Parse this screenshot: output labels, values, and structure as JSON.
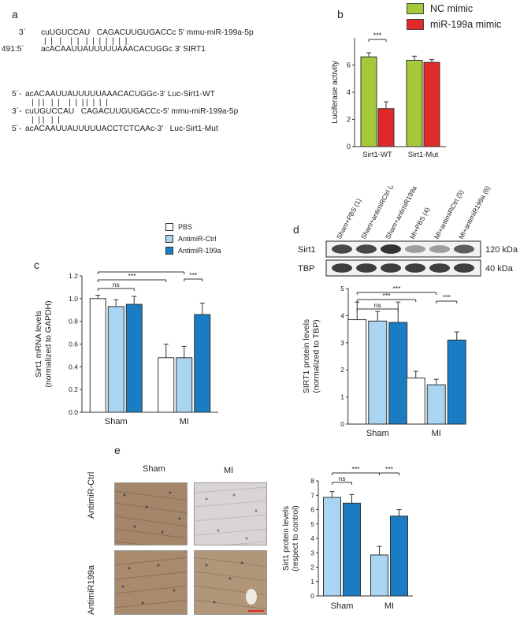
{
  "panel_labels": [
    "a",
    "b",
    "c",
    "d",
    "e"
  ],
  "panel_a": {
    "block1": [
      {
        "prefix": "3`",
        "seq": "cuUGUCCAU   CAGACUUGUGACCc 5' mmu-miR-199a-5p"
      },
      {
        "prefix": "",
        "seq": "|  |   |    |  |   |  |  |  |  |  |  |"
      },
      {
        "prefix": "491:5´",
        "seq": "acACAAUUAUUUUUAAACACUGGc 3' SIRT1"
      }
    ],
    "block2": [
      {
        "prefix": "5´-",
        "seq": "acACAAUUAUUUUUAAACACUGGc-3' Luc-Sirt1-WT"
      },
      {
        "prefix": "",
        "seq": "|  | |   |  |    |  |  | |  |  |  |"
      },
      {
        "prefix": "3`-",
        "seq": "cuUGUCCAU   CAGACUUGUGACCc-5' mmu-miR-199a-5p"
      },
      {
        "prefix": "",
        "seq": "|  | |   |  |"
      },
      {
        "prefix": "5´-",
        "seq": "acACAAUUAUUUUUACCTCTCAAc-3'   Luc-Sirt1-Mut"
      }
    ]
  },
  "panel_c_legend": [
    "PBS",
    "AntimiR-Ctrl",
    "AntimiR-199a"
  ],
  "panel_d_lanes": [
    "Sham+PBS (1)",
    "Sham+antimiRCtrl (2)",
    "Sham+antimiR199a (3)",
    "MI+PBS (4)",
    "MI+antimiRCtrl (5)",
    "MI+antimiR199a (6)"
  ],
  "panel_d_blots": [
    {
      "name": "Sirt1",
      "kda": "120 kDa",
      "intensity": [
        0.85,
        0.85,
        0.95,
        0.45,
        0.45,
        0.75
      ]
    },
    {
      "name": "TBP",
      "kda": "40 kDa",
      "intensity": [
        0.9,
        0.9,
        0.9,
        0.9,
        0.9,
        0.9
      ]
    }
  ],
  "panel_e_images": {
    "columns": [
      "Sham",
      "MI"
    ],
    "rows": [
      "AntimiR-Ctrl",
      "AntimiR199a"
    ]
  },
  "colors": {
    "nc_mimic": "#a6c93a",
    "mir199a_mimic": "#e02a2a",
    "pbs": "#ffffff",
    "antimir_ctrl": "#a9d4f2",
    "antimir_199a": "#1a7cc2",
    "scalebar": "#e02a2a"
  },
  "chart_data": [
    {
      "id": "b",
      "type": "bar",
      "categories": [
        "Sirt1-WT",
        "Sirt1-Mut"
      ],
      "series": [
        {
          "name": "NC mimic",
          "values": [
            6.6,
            6.35
          ],
          "errors": [
            0.3,
            0.3
          ]
        },
        {
          "name": "miR-199a mimic",
          "values": [
            2.8,
            6.2
          ],
          "errors": [
            0.5,
            0.2
          ]
        }
      ],
      "ylabel": "Luciferase activity",
      "ylim": [
        0,
        8
      ],
      "yticks": [
        0,
        2,
        4,
        6
      ],
      "significance": [
        {
          "label": "***",
          "between": [
            [
              0,
              0
            ],
            [
              0,
              1
            ]
          ]
        }
      ],
      "legend": "top-right"
    },
    {
      "id": "c",
      "type": "bar",
      "categories": [
        "Sham",
        "MI"
      ],
      "series": [
        {
          "name": "PBS",
          "values": [
            1.0,
            0.48
          ],
          "errors": [
            0.03,
            0.12
          ]
        },
        {
          "name": "AntimiR-Ctrl",
          "values": [
            0.93,
            0.48
          ],
          "errors": [
            0.06,
            0.1
          ]
        },
        {
          "name": "AntimiR-199a",
          "values": [
            0.95,
            0.86
          ],
          "errors": [
            0.07,
            0.1
          ]
        }
      ],
      "ylabel": "Sirt1 mRNA levels\n(normalized to GAPDH)",
      "ylim": [
        0,
        1.2
      ],
      "yticks": [
        0,
        0.2,
        0.4,
        0.6,
        0.8,
        1.0,
        1.2
      ],
      "significance": [
        {
          "label": "ns",
          "between": [
            [
              0,
              0
            ],
            [
              0,
              2
            ]
          ]
        },
        {
          "label": "***",
          "between": [
            [
              0,
              0
            ],
            [
              1,
              0
            ]
          ]
        },
        {
          "label": "***",
          "between": [
            [
              0,
              0
            ],
            [
              1,
              1
            ]
          ]
        },
        {
          "label": "***",
          "between": [
            [
              1,
              1
            ],
            [
              1,
              2
            ]
          ]
        }
      ]
    },
    {
      "id": "d",
      "type": "bar",
      "categories": [
        "Sham",
        "MI"
      ],
      "series": [
        {
          "name": "PBS",
          "values": [
            3.85,
            1.7
          ],
          "errors": [
            0.65,
            0.25
          ]
        },
        {
          "name": "AntimiR-Ctrl",
          "values": [
            3.8,
            1.45
          ],
          "errors": [
            0.35,
            0.2
          ]
        },
        {
          "name": "AntimiR-199a",
          "values": [
            3.75,
            3.1
          ],
          "errors": [
            0.75,
            0.3
          ]
        }
      ],
      "ylabel": "SIRT1 protein levels\n(normalized to TBP)",
      "ylim": [
        0,
        5
      ],
      "yticks": [
        0,
        1,
        2,
        3,
        4,
        5
      ],
      "significance": [
        {
          "label": "ns",
          "between": [
            [
              0,
              0
            ],
            [
              0,
              2
            ]
          ]
        },
        {
          "label": "***",
          "between": [
            [
              0,
              0
            ],
            [
              1,
              0
            ]
          ]
        },
        {
          "label": "***",
          "between": [
            [
              0,
              0
            ],
            [
              1,
              1
            ]
          ]
        },
        {
          "label": "***",
          "between": [
            [
              1,
              1
            ],
            [
              1,
              2
            ]
          ]
        }
      ]
    },
    {
      "id": "e",
      "type": "bar",
      "categories": [
        "Sham",
        "MI"
      ],
      "series": [
        {
          "name": "AntimiR-Ctrl",
          "values": [
            6.85,
            2.85
          ],
          "errors": [
            0.4,
            0.6
          ]
        },
        {
          "name": "AntimiR-199a",
          "values": [
            6.45,
            5.55
          ],
          "errors": [
            0.6,
            0.45
          ]
        }
      ],
      "ylabel": "Sirt1 protein levels\n(respect to control)",
      "ylim": [
        0,
        8
      ],
      "yticks": [
        0,
        1,
        2,
        3,
        4,
        5,
        6,
        7,
        8
      ],
      "significance": [
        {
          "label": "ns",
          "between": [
            [
              0,
              0
            ],
            [
              0,
              1
            ]
          ]
        },
        {
          "label": "***",
          "between": [
            [
              0,
              0
            ],
            [
              1,
              0
            ]
          ]
        },
        {
          "label": "***",
          "between": [
            [
              1,
              0
            ],
            [
              1,
              1
            ]
          ]
        }
      ]
    }
  ]
}
